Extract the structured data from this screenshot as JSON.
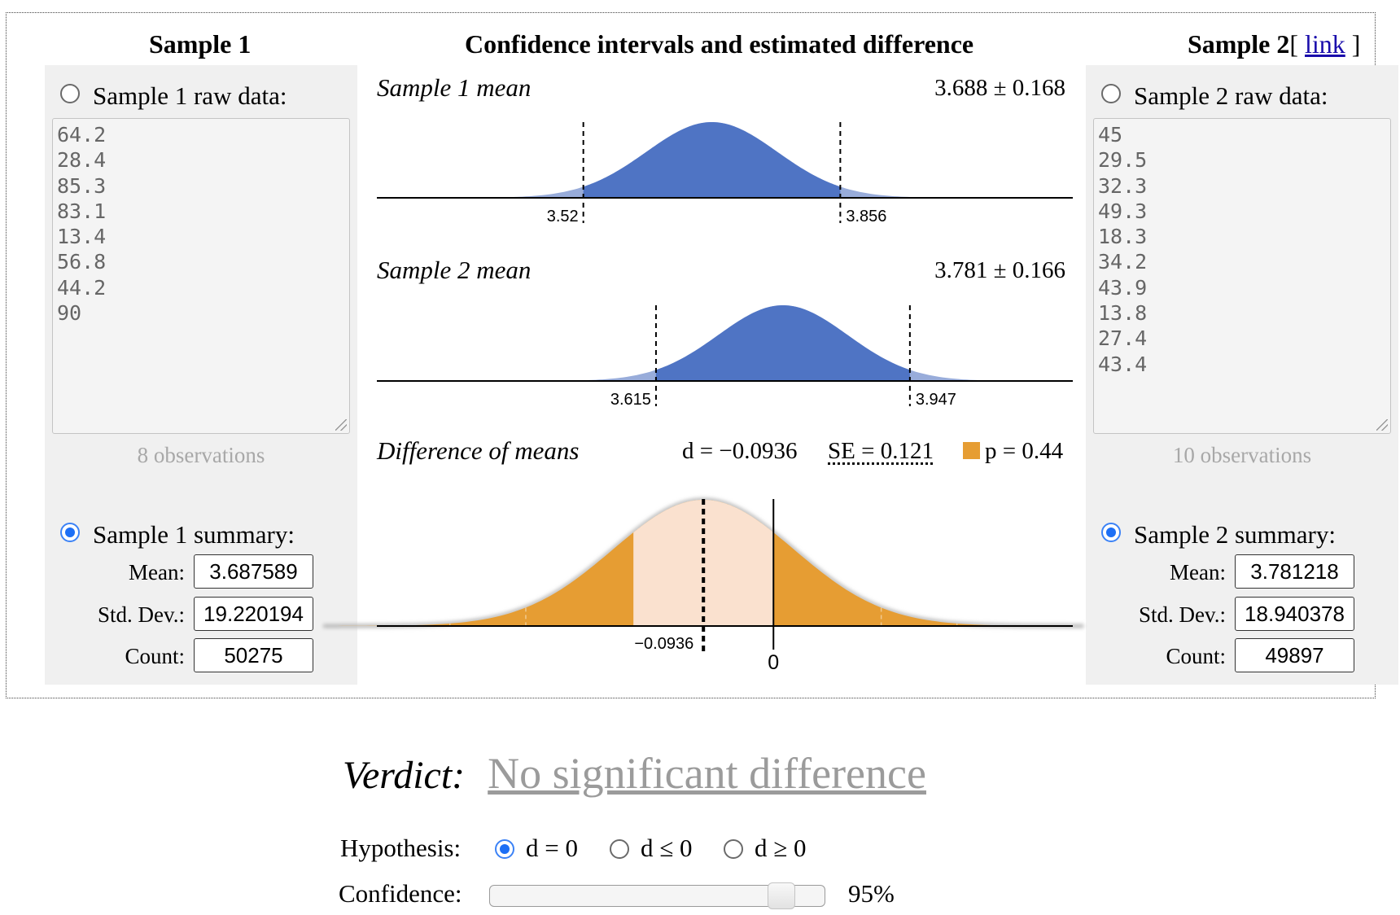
{
  "headers": {
    "sample1": "Sample 1",
    "middle": "Confidence intervals and estimated difference",
    "sample2": "Sample 2",
    "link_open": "[ ",
    "link_text": "link",
    "link_close": " ]"
  },
  "sample1": {
    "raw_label": "Sample 1 raw data:",
    "raw_selected": false,
    "raw_values": [
      "64.2",
      "28.4",
      "85.3",
      "83.1",
      "13.4",
      "56.8",
      "44.2",
      "90"
    ],
    "observations": "8 observations",
    "summary_label": "Sample 1 summary:",
    "summary_selected": true,
    "mean_label": "Mean:",
    "mean": "3.687589",
    "sd_label": "Std. Dev.:",
    "sd": "19.220194",
    "count_label": "Count:",
    "count": "50275"
  },
  "sample2": {
    "raw_label": "Sample 2 raw data:",
    "raw_selected": false,
    "raw_values": [
      "45",
      "29.5",
      "32.3",
      "49.3",
      "18.3",
      "34.2",
      "43.9",
      "13.8",
      "27.4",
      "43.4"
    ],
    "observations": "10 observations",
    "summary_label": "Sample 2 summary:",
    "summary_selected": true,
    "mean_label": "Mean:",
    "mean": "3.781218",
    "sd_label": "Std. Dev.:",
    "sd": "18.940378",
    "count_label": "Count:",
    "count": "49897"
  },
  "chart_data": [
    {
      "type": "area",
      "title": "Sample 1 mean",
      "value_text": "3.688 ± 0.168",
      "mean": 3.688,
      "se": 0.0857,
      "ci": [
        3.52,
        3.856
      ],
      "ci_labels": [
        "3.52",
        "3.856"
      ],
      "xlim": [
        3.25,
        4.16
      ]
    },
    {
      "type": "area",
      "title": "Sample 2 mean",
      "value_text": "3.781 ± 0.166",
      "mean": 3.781,
      "se": 0.0847,
      "ci": [
        3.615,
        3.947
      ],
      "ci_labels": [
        "3.615",
        "3.947"
      ],
      "xlim": [
        3.25,
        4.16
      ]
    },
    {
      "type": "area",
      "title": "Difference of means",
      "d_text": "d = −0.0936",
      "se_text": "SE = 0.121",
      "p_text": "p = 0.44",
      "d": -0.0936,
      "se": 0.121,
      "ci": [
        -0.331,
        0.144
      ],
      "null_value": 0,
      "d_label": "−0.0936",
      "zero_label": "0",
      "xlim": [
        -0.53,
        0.4
      ],
      "colors": {
        "tail": "#e69d33",
        "center": "#fae1cf"
      }
    }
  ],
  "verdict": {
    "label": "Verdict:",
    "text": "No significant difference"
  },
  "hypothesis": {
    "label": "Hypothesis:",
    "options": [
      "d = 0",
      "d ≤ 0",
      "d ≥ 0"
    ],
    "selected": 0
  },
  "confidence": {
    "label": "Confidence:",
    "value": 95,
    "min": 50,
    "max": 99.9,
    "display": "95%"
  },
  "colors": {
    "normal_fill": "#4f74c4",
    "normal_tail": "#98acda",
    "accent": "#1d6ff5",
    "link": "#1a0dab"
  }
}
